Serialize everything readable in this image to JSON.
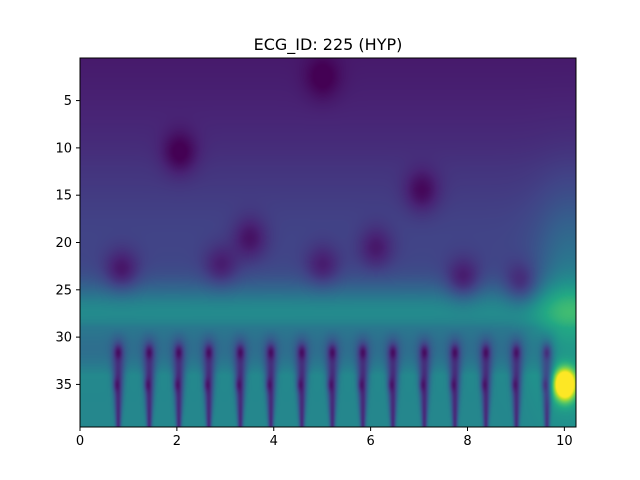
{
  "chart_data": {
    "type": "heatmap",
    "title": "ECG_ID: 225 (HYP)",
    "xlabel": "",
    "ylabel": "",
    "colormap": "viridis",
    "xlim": [
      0,
      10.24
    ],
    "ylim": [
      39.5,
      0.5
    ],
    "x_ticks": [
      0,
      2,
      4,
      6,
      8,
      10
    ],
    "x_tick_labels": [
      "0",
      "2",
      "4",
      "6",
      "8",
      "10"
    ],
    "y_ticks": [
      5,
      10,
      15,
      20,
      25,
      30,
      35
    ],
    "y_tick_labels": [
      "5",
      "10",
      "15",
      "20",
      "25",
      "30",
      "35"
    ],
    "scales": 39,
    "grid": false,
    "legend": "none",
    "colors": {
      "low": "#440154",
      "mid": "#21918c",
      "high": "#fde725",
      "background": "#46337e"
    },
    "beat_times": [
      0.78,
      1.42,
      2.03,
      2.65,
      3.3,
      3.93,
      4.57,
      5.2,
      5.83,
      6.45,
      7.1,
      7.73,
      8.37,
      9.0,
      9.63
    ],
    "low_energy_blobs": [
      {
        "t": 0.85,
        "scale": 23,
        "depth": 0.55
      },
      {
        "t": 2.05,
        "scale": 10.5,
        "depth": 0.5
      },
      {
        "t": 2.9,
        "scale": 22.5,
        "depth": 0.45
      },
      {
        "t": 3.5,
        "scale": 19.5,
        "depth": 0.5
      },
      {
        "t": 5.0,
        "scale": 22.5,
        "depth": 0.45
      },
      {
        "t": 6.1,
        "scale": 20.5,
        "depth": 0.45
      },
      {
        "t": 7.05,
        "scale": 14.5,
        "depth": 0.5
      },
      {
        "t": 7.9,
        "scale": 24,
        "depth": 0.6
      },
      {
        "t": 9.1,
        "scale": 24.5,
        "depth": 0.6
      },
      {
        "t": 5.0,
        "scale": 2.5,
        "depth": 0.35
      }
    ],
    "hotspot": {
      "t": 10.0,
      "scale": 35,
      "value": 1.0
    }
  }
}
